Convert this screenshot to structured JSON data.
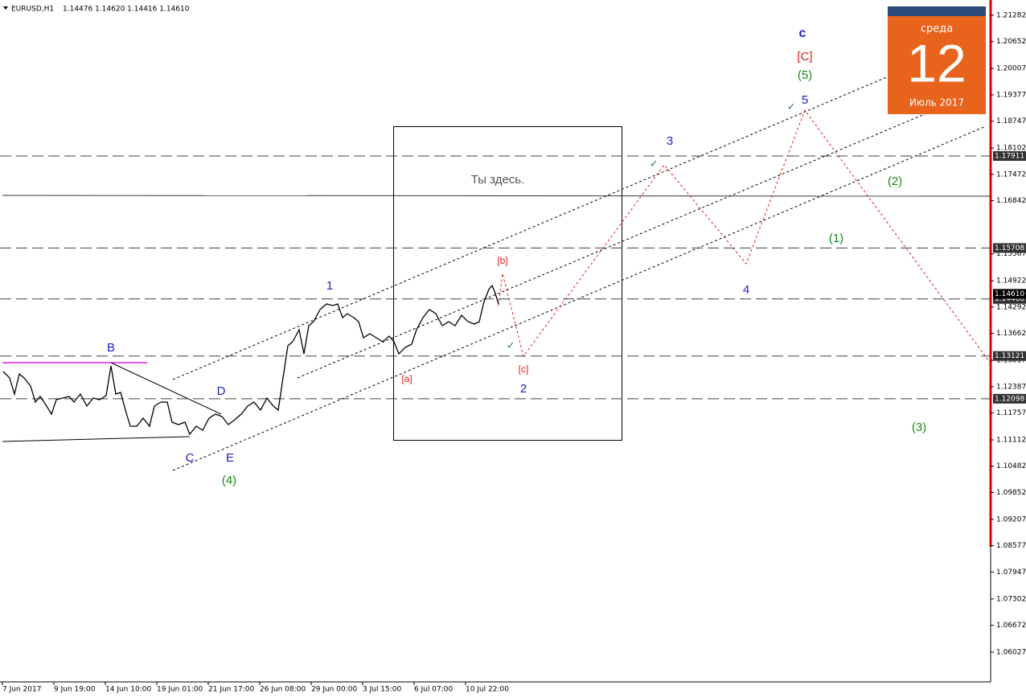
{
  "header": {
    "symbol": "EURUSD,H1",
    "ohlc": "1.14476 1.14620 1.14416 1.14610"
  },
  "chart_data": {
    "type": "line",
    "color": "#000000",
    "x": [
      4,
      12,
      18,
      24,
      30,
      38,
      44,
      50,
      58,
      64,
      70,
      78,
      86,
      92,
      100,
      108,
      116,
      124,
      132,
      138,
      144,
      150,
      156,
      162,
      170,
      178,
      186,
      192,
      200,
      208,
      214,
      222,
      230,
      236,
      244,
      252,
      260,
      268,
      276,
      284,
      292,
      300,
      308,
      316,
      324,
      332,
      340,
      346,
      352,
      358,
      364,
      372,
      378,
      384,
      390,
      398,
      406,
      414,
      420,
      426,
      432,
      440,
      446,
      452,
      460,
      468,
      476,
      484,
      490,
      496,
      504,
      512,
      518,
      526,
      534,
      542,
      550,
      558,
      566,
      574,
      582,
      590,
      596,
      602,
      608,
      612,
      616,
      620
    ],
    "values": [
      1.1275,
      1.12596,
      1.12211,
      1.12692,
      1.12596,
      1.12403,
      1.12018,
      1.12153,
      1.11922,
      1.11729,
      1.12076,
      1.12114,
      1.12153,
      1.12018,
      1.12211,
      1.11922,
      1.12114,
      1.12076,
      1.12172,
      1.12885,
      1.12211,
      1.12249,
      1.11825,
      1.1144,
      1.1144,
      1.11633,
      1.1144,
      1.11922,
      1.12018,
      1.12018,
      1.11536,
      1.11479,
      1.11536,
      1.11248,
      1.1144,
      1.11344,
      1.11633,
      1.11729,
      1.11671,
      1.11479,
      1.11594,
      1.11729,
      1.11922,
      1.12018,
      1.11825,
      1.12114,
      1.11922,
      1.11825,
      1.12596,
      1.13366,
      1.13462,
      1.13751,
      1.13174,
      1.13848,
      1.13944,
      1.14233,
      1.14368,
      1.14329,
      1.14368,
      1.1404,
      1.14137,
      1.1404,
      1.13944,
      1.13559,
      1.13655,
      1.13559,
      1.13462,
      1.13597,
      1.13462,
      1.13174,
      1.13328,
      1.13405,
      1.13751,
      1.1404,
      1.14233,
      1.14137,
      1.13848,
      1.13944,
      1.13848,
      1.14098,
      1.13944,
      1.13886,
      1.13944,
      1.14425,
      1.14714,
      1.14811,
      1.14618,
      1.14368
    ],
    "xlim": [
      0,
      1232
    ],
    "ylim": [
      1.05315,
      1.21648
    ],
    "xticks": [
      {
        "value": 3,
        "label": "7 Jun 2017"
      },
      {
        "value": 67,
        "label": "9 Jun 19:00"
      },
      {
        "value": 131,
        "label": "14 Jun 10:00"
      },
      {
        "value": 195,
        "label": "19 Jun 01:00"
      },
      {
        "value": 259,
        "label": "21 Jun 17:00"
      },
      {
        "value": 323,
        "label": "26 Jun 08:00"
      },
      {
        "value": 387,
        "label": "29 Jun 00:00"
      },
      {
        "value": 451,
        "label": "3 Jul 15:00"
      },
      {
        "value": 515,
        "label": "6 Jul 07:00"
      },
      {
        "value": 579,
        "label": "10 Jul 22:00"
      }
    ],
    "yticks": [
      1.21282,
      1.20652,
      1.20007,
      1.19377,
      1.18747,
      1.18102,
      1.17472,
      1.16842,
      1.15567,
      1.14922,
      1.14292,
      1.13662,
      1.13017,
      1.12387,
      1.11757,
      1.11112,
      1.10482,
      1.09852,
      1.09207,
      1.08577,
      1.07947,
      1.07302,
      1.06672,
      1.06027
    ],
    "levels": [
      1.17911,
      1.15708,
      1.14488,
      1.13121,
      1.12098
    ],
    "bid": {
      "value": 1.1461,
      "label": "1.14610"
    },
    "annotations": [
      {
        "text": "c",
        "color": "#1c1cc8"
      },
      {
        "text": "[C]",
        "color": "#e02020"
      },
      {
        "text": "(5)",
        "color": "#1a8a1a"
      },
      {
        "text": "5",
        "color": "#1c1cc8"
      },
      {
        "text": "3",
        "color": "#1c1cc8"
      },
      {
        "text": "(2)",
        "color": "#1a8a1a"
      },
      {
        "text": "(1)",
        "color": "#1a8a1a"
      },
      {
        "text": "[b]",
        "color": "#e02020"
      },
      {
        "text": "1",
        "color": "#1c1cc8"
      },
      {
        "text": "4",
        "color": "#1c1cc8"
      },
      {
        "text": "B",
        "color": "#1c1cc8"
      },
      {
        "text": "[a]",
        "color": "#e02020"
      },
      {
        "text": "[c]",
        "color": "#e02020"
      },
      {
        "text": "2",
        "color": "#1c1cc8"
      },
      {
        "text": "D",
        "color": "#1c1cc8"
      },
      {
        "text": "(3)",
        "color": "#1a8a1a"
      },
      {
        "text": "C",
        "color": "#1c1cc8"
      },
      {
        "text": "E",
        "color": "#1c1cc8"
      },
      {
        "text": "(4)",
        "color": "#1a8a1a"
      },
      {
        "text": "Ты здесь.",
        "color": "#555555"
      }
    ]
  },
  "calendar": {
    "weekday": "среда",
    "day": "12",
    "month": "Июль 2017"
  }
}
